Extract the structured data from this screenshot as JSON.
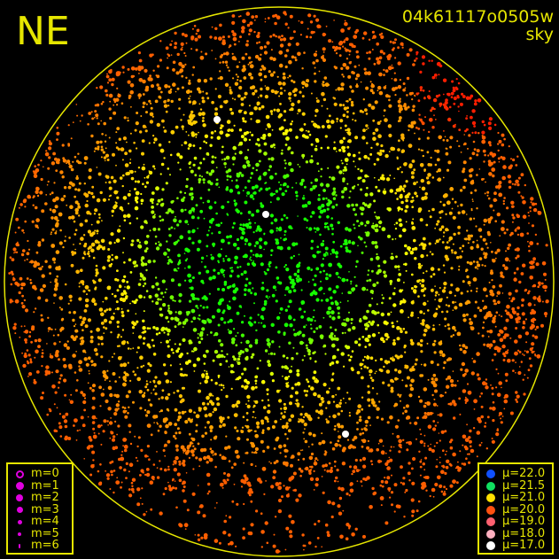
{
  "header": {
    "direction_label": "NE",
    "image_id": "04k61117o0505w",
    "mode": "sky"
  },
  "magnitude_legend": {
    "symbol_color": "#e000e0",
    "items": [
      {
        "label": "m=0",
        "hollow": true
      },
      {
        "label": "m=1"
      },
      {
        "label": "m=2"
      },
      {
        "label": "m=3"
      },
      {
        "label": "m=4"
      },
      {
        "label": "m=5"
      },
      {
        "label": "m=6"
      }
    ]
  },
  "brightness_legend": {
    "items": [
      {
        "label": "μ=22.0",
        "color": "#1050ff"
      },
      {
        "label": "μ=21.5",
        "color": "#10e060"
      },
      {
        "label": "μ=21.0",
        "color": "#ffe000"
      },
      {
        "label": "μ=20.0",
        "color": "#ff5010"
      },
      {
        "label": "μ=19.0",
        "color": "#ff6070"
      },
      {
        "label": "μ=18.0",
        "color": "#ffb0c0"
      },
      {
        "label": "μ=17.0",
        "color": "#ffffff"
      }
    ]
  },
  "colors": {
    "horizon": "#e6e600",
    "background": "#000000"
  }
}
